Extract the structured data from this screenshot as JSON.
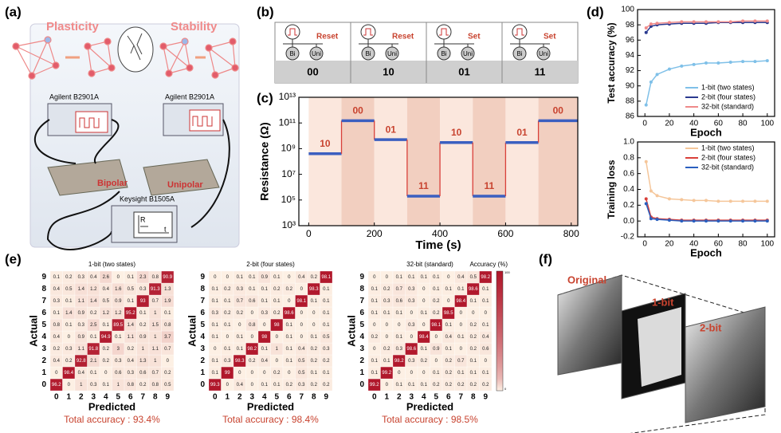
{
  "panel_labels": [
    "(a)",
    "(b)",
    "(c)",
    "(d)",
    "(e)",
    "(f)"
  ],
  "panel_a": {
    "left_title": "Plasticity",
    "right_title": "Stability",
    "source_left": "Agilent B2901A",
    "source_right": "Agilent B2901A",
    "device_left": "Bipolar",
    "device_right": "Unipolar",
    "analyzer": "Keysight B1505A",
    "screen_y": "R",
    "screen_x": "t"
  },
  "panel_b": {
    "bi": "Bi",
    "uni": "Uni",
    "columns": [
      {
        "operation": "Reset",
        "code": "00"
      },
      {
        "operation": "Reset",
        "code": "10"
      },
      {
        "operation": "Set",
        "code": "01"
      },
      {
        "operation": "Set",
        "code": "11"
      }
    ]
  },
  "chart_data": [
    {
      "type": "step",
      "xlabel": "Time (s)",
      "ylabel": "Resistance (Ω)",
      "log": true,
      "color": "#3b5fc0",
      "annotation_color": "#c8432f",
      "x": [
        0,
        100,
        200,
        300,
        400,
        500,
        600,
        700
      ],
      "values": [
        400000000,
        150000000000,
        5000000000,
        200000,
        3000000000,
        200000,
        3000000000,
        150000000000
      ],
      "annotations": [
        "10",
        "00",
        "01",
        "11",
        "10",
        "11",
        "01",
        "00"
      ],
      "xlim": [
        -30,
        820
      ],
      "xticks": [
        0,
        200,
        400,
        600,
        800
      ],
      "ylim": [
        1000,
        10000000000000
      ],
      "yticks": [
        {
          "value": 1000,
          "label": "10³"
        },
        {
          "value": 100000,
          "label": "10⁵"
        },
        {
          "value": 10000000,
          "label": "10⁷"
        },
        {
          "value": 1000000000,
          "label": "10⁹"
        },
        {
          "value": 100000000000,
          "label": "10¹¹"
        },
        {
          "value": 10000000000000,
          "label": "10¹³"
        }
      ]
    },
    {
      "type": "line",
      "xlabel": "Epoch",
      "ylabel": "Test accuracy (%)",
      "legend": "lower right",
      "x": [
        1,
        5,
        10,
        20,
        30,
        40,
        50,
        60,
        70,
        80,
        90,
        100
      ],
      "xlim": [
        -6,
        106
      ],
      "xticks": [
        0,
        20,
        40,
        60,
        80,
        100
      ],
      "ylim": [
        86,
        100
      ],
      "yticks": [
        86,
        88,
        90,
        92,
        94,
        96,
        98,
        100
      ],
      "series": [
        {
          "name": "1-bit (two states)",
          "color": "#7fc0e8",
          "values": [
            87.5,
            90.5,
            91.5,
            92.2,
            92.6,
            92.8,
            93,
            93,
            93.1,
            93.2,
            93.2,
            93.3
          ]
        },
        {
          "name": "2-bit (four states)",
          "color": "#2b3a8f",
          "values": [
            97,
            97.8,
            98,
            98.1,
            98.2,
            98.2,
            98.2,
            98.3,
            98.3,
            98.3,
            98.3,
            98.3
          ]
        },
        {
          "name": "32-bit (standard)",
          "color": "#ef8a8a",
          "values": [
            97.6,
            98.1,
            98.2,
            98.3,
            98.4,
            98.4,
            98.4,
            98.4,
            98.4,
            98.5,
            98.5,
            98.5
          ]
        }
      ]
    },
    {
      "type": "line",
      "xlabel": "Epoch",
      "ylabel": "Training loss",
      "legend": "upper right",
      "x": [
        1,
        5,
        10,
        20,
        30,
        40,
        50,
        60,
        70,
        80,
        90,
        100
      ],
      "xlim": [
        -6,
        106
      ],
      "xticks": [
        0,
        20,
        40,
        60,
        80,
        100
      ],
      "ylim": [
        -0.2,
        1.0
      ],
      "yticks": [
        -0.2,
        {
          "value": 0,
          "label": "0.0"
        },
        0.2,
        0.4,
        0.6,
        0.8,
        {
          "value": 1,
          "label": "1.0"
        }
      ],
      "series": [
        {
          "name": "1-bit (two states)",
          "color": "#f5c69a",
          "values": [
            0.75,
            0.38,
            0.32,
            0.28,
            0.27,
            0.26,
            0.26,
            0.25,
            0.25,
            0.25,
            0.25,
            0.25
          ]
        },
        {
          "name": "2-bit (four states)",
          "color": "#d9403a",
          "values": [
            0.28,
            0.05,
            0.03,
            0.02,
            0.01,
            0.01,
            0.01,
            0.01,
            0.01,
            0.01,
            0.01,
            0.01
          ]
        },
        {
          "name": "32-bit (standard)",
          "color": "#2a5fbf",
          "values": [
            0.22,
            0.03,
            0.02,
            0.01,
            0,
            0,
            0,
            0,
            0,
            0,
            0,
            0
          ]
        }
      ]
    },
    {
      "type": "heatmap",
      "title": "1-bit (two states)",
      "xlabel": "Predicted",
      "ylabel": "Actual",
      "annotation": "Total accuracy : 93.4%",
      "categories": [
        "0",
        "1",
        "2",
        "3",
        "4",
        "5",
        "6",
        "7",
        "8",
        "9"
      ],
      "zlim": [
        0,
        100
      ],
      "values": [
        [
          96.2,
          0,
          1,
          0.3,
          0.1,
          1,
          0.8,
          0.2,
          0.8,
          0.5
        ],
        [
          0,
          98.4,
          0.4,
          0.1,
          0,
          0.6,
          0.3,
          0.6,
          0.7,
          0.2
        ],
        [
          0.4,
          0.2,
          92.8,
          2.1,
          0.2,
          0.3,
          0.4,
          1.3,
          1,
          0
        ],
        [
          0.2,
          0.3,
          1.1,
          91.8,
          0.2,
          3,
          0.2,
          1,
          1.1,
          0.7
        ],
        [
          0.4,
          0,
          0.9,
          0.1,
          94.9,
          0.1,
          1.1,
          0.9,
          1,
          3.7
        ],
        [
          0.8,
          0.1,
          0.3,
          2.5,
          0.1,
          89.5,
          1.4,
          0.2,
          1.5,
          0.8
        ],
        [
          0.1,
          1.4,
          0.9,
          0.2,
          1.2,
          1.2,
          95.2,
          0.1,
          1,
          0.1
        ],
        [
          0.3,
          0.1,
          1.1,
          1.4,
          0.5,
          0.9,
          0.1,
          93,
          0.7,
          1.9
        ],
        [
          0.4,
          0.5,
          1.4,
          1.2,
          0.4,
          1.6,
          0.5,
          0.3,
          91.3,
          1.3
        ],
        [
          0.1,
          0.2,
          0.3,
          0.4,
          2.6,
          0,
          0.1,
          2.3,
          0.8,
          90.9
        ]
      ]
    },
    {
      "type": "heatmap",
      "title": "2-bit (four states)",
      "xlabel": "Predicted",
      "ylabel": "Actual",
      "annotation": "Total accuracy : 98.4%",
      "categories": [
        "0",
        "1",
        "2",
        "3",
        "4",
        "5",
        "6",
        "7",
        "8",
        "9"
      ],
      "zlim": [
        0,
        100
      ],
      "values": [
        [
          99.3,
          0,
          0.4,
          0,
          0.1,
          0.1,
          0.2,
          0.3,
          0.2,
          0.2
        ],
        [
          0.1,
          99,
          0,
          0,
          0,
          0.2,
          0,
          0.5,
          0.1,
          0.1
        ],
        [
          0.1,
          0.3,
          98.3,
          0.2,
          0.4,
          0,
          0.1,
          0.5,
          0.2,
          0.2
        ],
        [
          0,
          0.1,
          0.1,
          98.2,
          0.1,
          1,
          0.1,
          0.4,
          0.2,
          0.3
        ],
        [
          0.1,
          0,
          0.1,
          0,
          98,
          0,
          0.1,
          0,
          0.1,
          0.5
        ],
        [
          0.1,
          0.1,
          0,
          0.8,
          0,
          98,
          0.1,
          0,
          0,
          0.1
        ],
        [
          0.3,
          0.2,
          0.2,
          0,
          0.3,
          0.2,
          98.6,
          0,
          0,
          0.1
        ],
        [
          0.1,
          0.1,
          0.7,
          0.6,
          0.1,
          0.1,
          0,
          98.1,
          0.1,
          0.1
        ],
        [
          0.1,
          0.2,
          0.3,
          0.1,
          0.1,
          0.2,
          0.2,
          0,
          98.3,
          0.1
        ],
        [
          0,
          0,
          0.1,
          0.1,
          0.9,
          0.1,
          0,
          0.4,
          0.2,
          98.1
        ]
      ]
    },
    {
      "type": "heatmap",
      "title": "32-bit (standard)",
      "xlabel": "Predicted",
      "ylabel": "Actual",
      "annotation": "Total accuracy : 98.5%",
      "colorbar_label": "Accuracy (%)",
      "categories": [
        "0",
        "1",
        "2",
        "3",
        "4",
        "5",
        "6",
        "7",
        "8",
        "9"
      ],
      "zlim": [
        0,
        100
      ],
      "values": [
        [
          99.2,
          0,
          0.1,
          0.1,
          0.1,
          0.2,
          0.2,
          0.2,
          0.2,
          0.2
        ],
        [
          0.1,
          99.2,
          0,
          0,
          0,
          0.1,
          0.2,
          0.1,
          0.1,
          0.1
        ],
        [
          0.1,
          0.1,
          98.2,
          0.3,
          0.2,
          0,
          0.2,
          0.7,
          0.1,
          0
        ],
        [
          0,
          0.2,
          0.3,
          98.6,
          0.1,
          0.9,
          0.1,
          0,
          0.2,
          0.6
        ],
        [
          0.2,
          0,
          0.1,
          0,
          98.4,
          0,
          0.4,
          0.1,
          0.2,
          0.4
        ],
        [
          0,
          0,
          0,
          0.3,
          0,
          98.1,
          0.1,
          0,
          0.2,
          0.1
        ],
        [
          0.1,
          0.1,
          0.1,
          0,
          0.1,
          0.2,
          98.5,
          0,
          0,
          0
        ],
        [
          0.1,
          0.3,
          0.6,
          0.3,
          0,
          0.2,
          0,
          98.4,
          0.1,
          0.1
        ],
        [
          0.1,
          0.2,
          0.7,
          0.3,
          0,
          0.1,
          0.1,
          0.1,
          98.6,
          0.1
        ],
        [
          0,
          0,
          0.1,
          0.1,
          0.1,
          0.1,
          0,
          0.4,
          0.5,
          98.2
        ]
      ]
    }
  ],
  "panel_f": {
    "labels": [
      "Original",
      "1-bit",
      "2-bit"
    ]
  }
}
